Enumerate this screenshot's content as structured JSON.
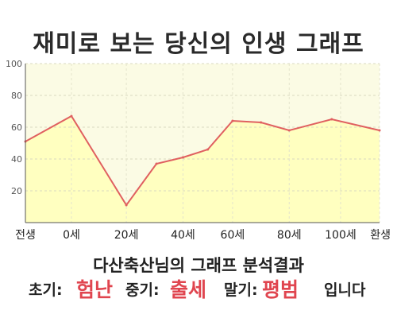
{
  "title": "재미로 보는 당신의 인생 그래프",
  "chart_data": {
    "type": "area",
    "title": "재미로 보는 당신의 인생 그래프",
    "x": [
      0,
      26,
      57,
      74,
      89,
      103,
      117,
      133,
      149,
      173,
      200
    ],
    "y": [
      51,
      67,
      11,
      37,
      41,
      46,
      64,
      63,
      58,
      65,
      58
    ],
    "x_tick_labels": [
      {
        "x": 0,
        "label": "전생"
      },
      {
        "x": 26,
        "label": "0세"
      },
      {
        "x": 57,
        "label": "20세"
      },
      {
        "x": 89,
        "label": "40세"
      },
      {
        "x": 117,
        "label": "60세"
      },
      {
        "x": 149,
        "label": "80세"
      },
      {
        "x": 178,
        "label": "100세"
      },
      {
        "x": 200,
        "label": "환생"
      }
    ],
    "ylim": [
      0,
      100
    ],
    "y_ticks": [
      20,
      40,
      60,
      80,
      100
    ],
    "grid": true,
    "line_color": "#e06060",
    "fill_color": "#ffffc0",
    "background_color": "#fbfbe4"
  },
  "subtitle": "다산축산님의 그래프 분석결과",
  "summary": {
    "early_label": "초기:",
    "early_value": "험난",
    "mid_label": "중기:",
    "mid_value": "출세",
    "late_label": "말기:",
    "late_value": "평범",
    "ending": "입니다",
    "highlight_color": "#e0454f"
  }
}
